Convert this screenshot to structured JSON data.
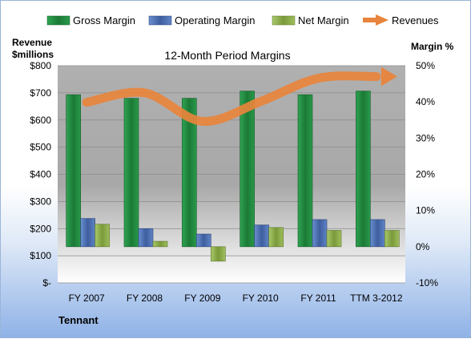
{
  "chart_data": {
    "type": "bar",
    "title": "12-Month Period Margins",
    "left_axis_title": [
      "Revenue",
      "$millions"
    ],
    "right_axis_title": "Margin %",
    "footer": "Tennant",
    "categories": [
      "FY 2007",
      "FY 2008",
      "FY 2009",
      "FY 2010",
      "FY 2011",
      "TTM 3-2012"
    ],
    "left_ticks": [
      "$-",
      "$100",
      "$200",
      "$300",
      "$400",
      "$500",
      "$600",
      "$700",
      "$800"
    ],
    "right_ticks": [
      "-10%",
      "0%",
      "10%",
      "20%",
      "30%",
      "40%",
      "50%"
    ],
    "ylim_left": [
      0,
      800
    ],
    "ylim_right": [
      -10,
      50
    ],
    "grid": true,
    "legend_position": "top",
    "series": [
      {
        "name": "Gross Margin",
        "axis": "right",
        "kind": "bar",
        "color": "#1f8a3e",
        "values": [
          42.0,
          41.0,
          41.0,
          43.0,
          42.0,
          43.0
        ]
      },
      {
        "name": "Operating Margin",
        "axis": "right",
        "kind": "bar",
        "color": "#4a6fb5",
        "values": [
          7.8,
          5.0,
          3.5,
          6.0,
          7.5,
          7.5
        ]
      },
      {
        "name": "Net Margin",
        "axis": "right",
        "kind": "bar",
        "color": "#8fb04a",
        "values": [
          6.2,
          1.5,
          -4.0,
          5.3,
          4.5,
          4.5
        ]
      },
      {
        "name": "Revenues",
        "axis": "left",
        "kind": "line",
        "color": "#e8843c",
        "values": [
          665,
          700,
          595,
          668,
          754,
          760
        ]
      }
    ]
  }
}
